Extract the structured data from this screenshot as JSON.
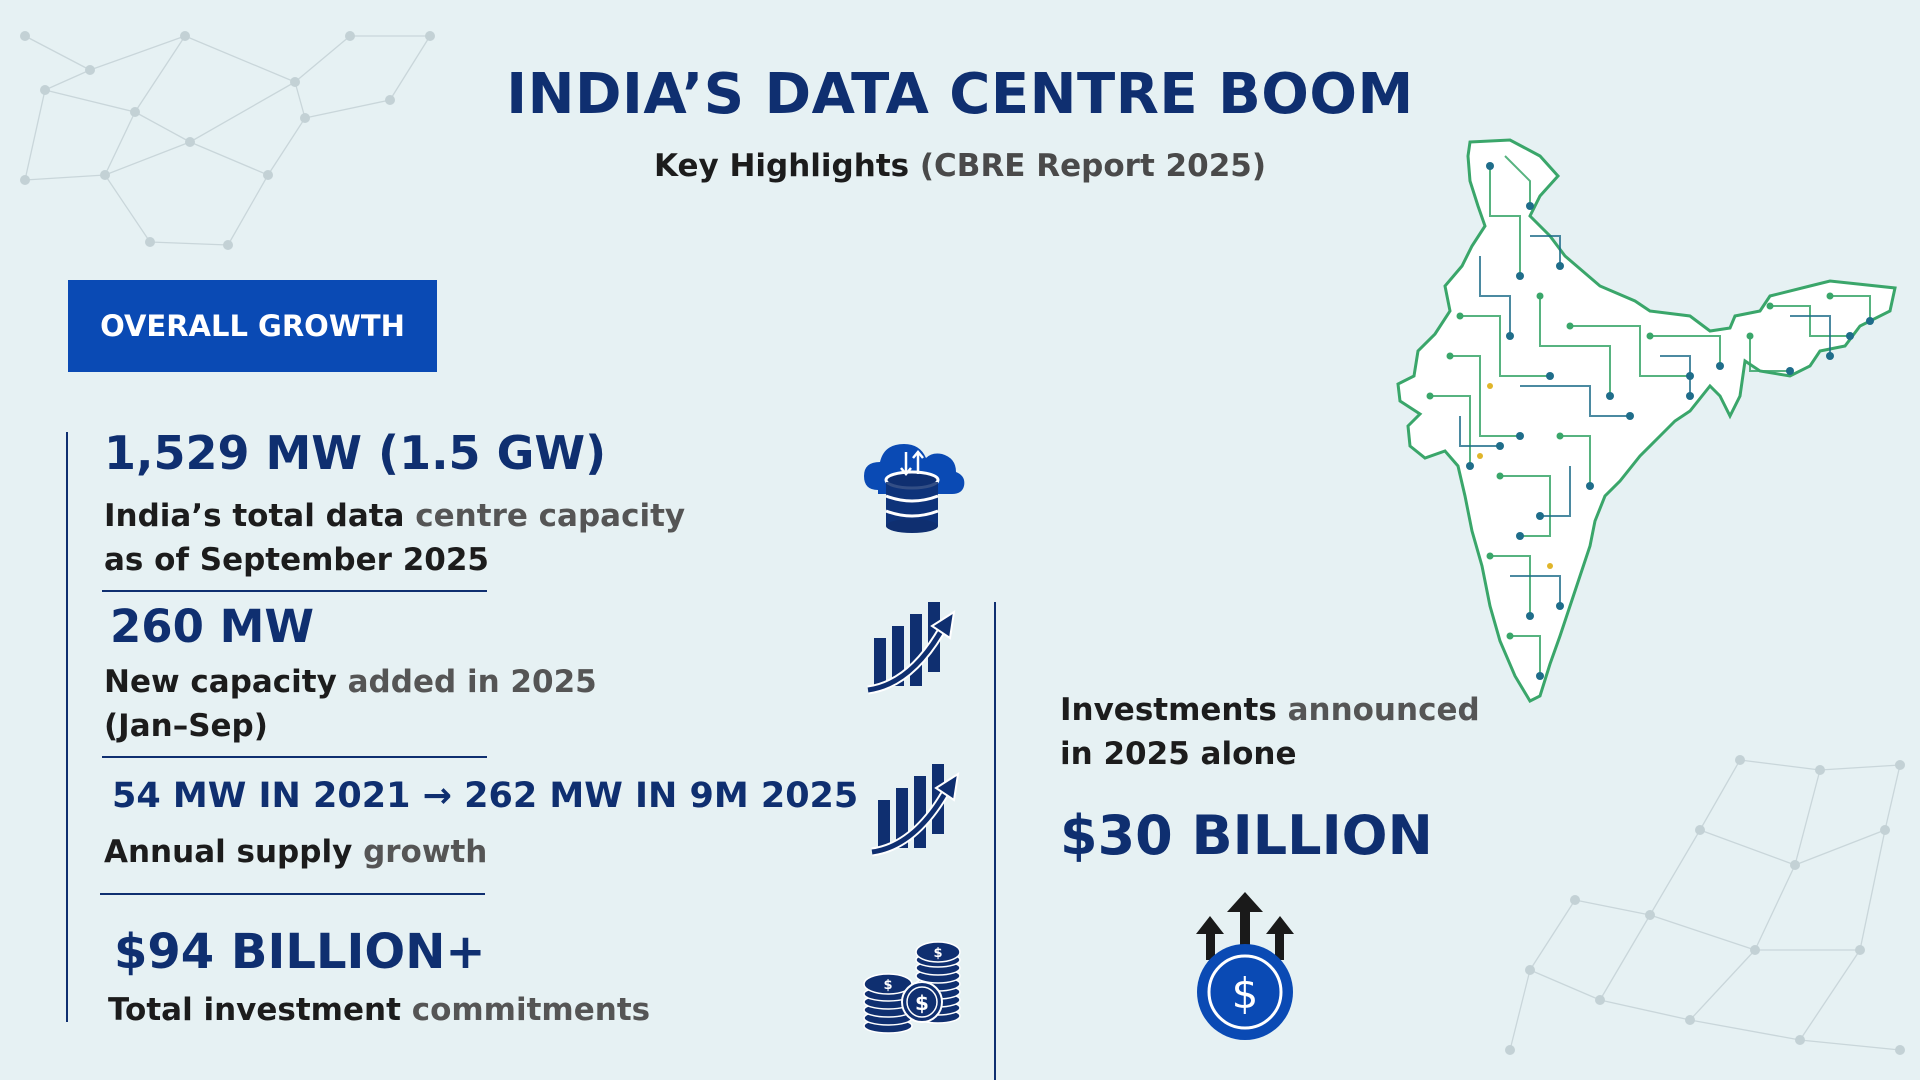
{
  "header": {
    "title": "INDIA’S DATA CENTRE BOOM",
    "subtitle_bold": "Key Highlights",
    "subtitle_source": "(CBRE Report 2025)"
  },
  "section": {
    "label": "OVERALL GROWTH"
  },
  "metrics": [
    {
      "value": "1,529 MW (1.5 GW)",
      "desc_line1_a": "India’s total data ",
      "desc_line1_b": "centre capacity",
      "desc_line2": "as of September 2025",
      "icon": "cloud-database-icon"
    },
    {
      "value": "260 MW",
      "desc_line1_a": "New capacity ",
      "desc_line1_b": "added in 2025",
      "desc_line2": "(Jan–Sep)",
      "icon": "growth-bar-chart-icon"
    },
    {
      "value": "54 MW IN 2021 → 262 MW IN 9M 2025",
      "desc_line1_a": "Annual supply ",
      "desc_line1_b": "growth",
      "icon": "growth-bar-chart-icon"
    },
    {
      "value": "$94 BILLION+",
      "desc_line1_a": "Total investment ",
      "desc_line1_b": "commitments",
      "icon": "coin-stacks-icon"
    }
  ],
  "investment": {
    "desc_line1_a": "Investments ",
    "desc_line1_b": "announced",
    "desc_line2": "in 2025 alone",
    "value": "$30 BILLION",
    "icon": "dollar-coin-arrows-icon"
  },
  "colors": {
    "background": "#e6f1f3",
    "navy": "#0f2f70",
    "badge_blue": "#0a4ab4",
    "map_green": "#3aa66a",
    "map_teal": "#1f6d8a"
  },
  "map": {
    "icon": "india-circuit-map-icon"
  }
}
